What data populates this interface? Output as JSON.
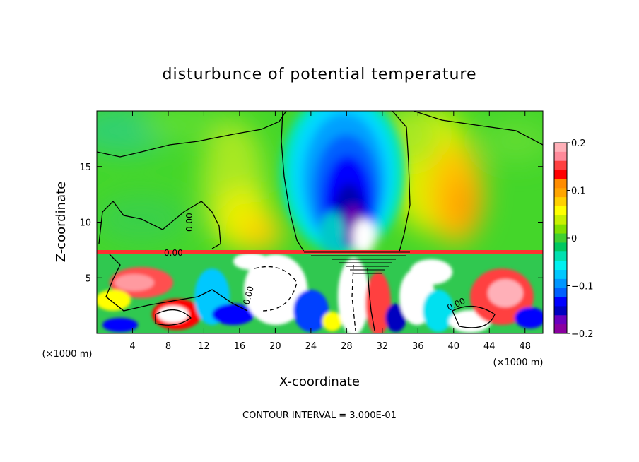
{
  "chart_data": {
    "type": "heatmap",
    "title": "disturbunce of potential temperature",
    "xlabel": "X-coordinate",
    "ylabel": "Z-coordinate",
    "x_unit_left": "(×1000 m)",
    "x_unit_right": "(×1000 m)",
    "xlim": [
      0,
      50
    ],
    "ylim": [
      0,
      20
    ],
    "x_ticks": [
      4,
      8,
      12,
      16,
      20,
      24,
      28,
      32,
      36,
      40,
      44,
      48
    ],
    "x_tick_labels": [
      "4",
      "8",
      "12",
      "16",
      "20",
      "24",
      "28",
      "32",
      "36",
      "40",
      "44",
      "48"
    ],
    "y_ticks": [
      5,
      10,
      15
    ],
    "y_tick_labels": [
      "5",
      "10",
      "15"
    ],
    "colorbar": {
      "range": [
        -0.2,
        0.2
      ],
      "ticks": [
        0.2,
        0.1,
        0,
        -0.1,
        -0.2
      ],
      "tick_labels": [
        "0.2",
        "0.1",
        "0",
        "−0.1",
        "−0.2"
      ],
      "colors": [
        "#ffb0b8",
        "#ff8a9a",
        "#ff4040",
        "#ff0000",
        "#ff8c00",
        "#ffa500",
        "#ffd000",
        "#ffff00",
        "#c8f000",
        "#80e000",
        "#40d030",
        "#00c860",
        "#00e0b0",
        "#00f0f0",
        "#00c8ff",
        "#0096ff",
        "#0060ff",
        "#0000ff",
        "#0000c0",
        "#6a00c0",
        "#8a00a0"
      ]
    },
    "contour_labels": [
      "0.00",
      "0.00",
      "0.00",
      "0.00"
    ],
    "contour_interval_text": "CONTOUR INTERVAL = 3.000E-01"
  }
}
